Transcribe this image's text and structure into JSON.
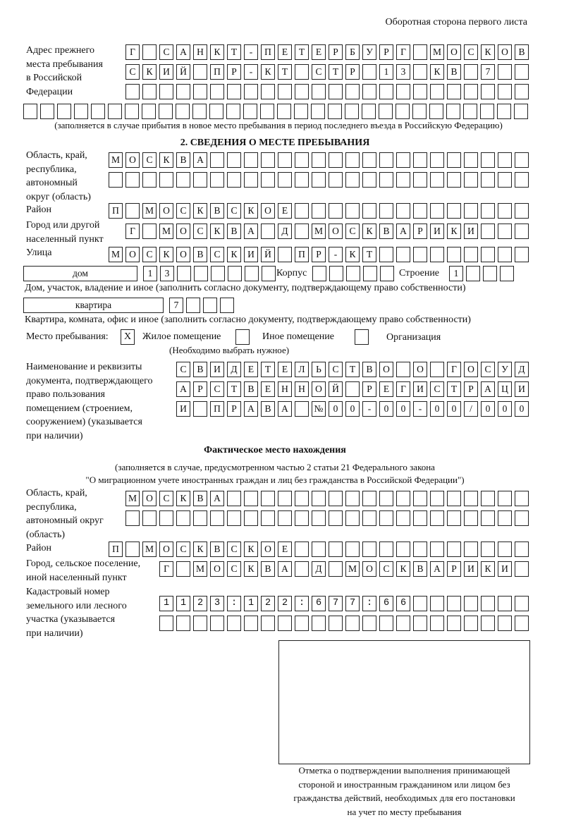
{
  "header": "Оборотная сторона первого листа",
  "previous_address": {
    "label": "Адрес прежнего\nместа пребывания\nв Российской\nФедерации",
    "rows": [
      "Г САНКТ-ПЕТЕРБУРГ МОСКОВ",
      "СКИЙ ПР-КТ СТР 13 КВ 7",
      "",
      ""
    ],
    "note": "(заполняется в случае прибытия в новое место пребывания в период последнего въезда в Российскую Федерацию)"
  },
  "section2": {
    "title": "2. СВЕДЕНИЯ О МЕСТЕ ПРЕБЫВАНИЯ",
    "region_label": "Область, край,\nреспублика,\nавтономный\nокруг (область)",
    "region_rows": [
      "МОСКВА",
      ""
    ],
    "district_label": "Район",
    "district": "П МОСКВСКОЕ",
    "city_label": "Город или другой\nнаселенный пункт",
    "city": "Г МОСКВА Д МОСКВАРИКИ",
    "street_label": "Улица",
    "street": "МОСКОВСКИЙ ПР-КТ",
    "house_type": "дом",
    "house_number": "13",
    "korpus_label": "Корпус",
    "korpus": "",
    "building_label": "Строение",
    "building": "1",
    "house_note": "Дом, участок, владение и иное (заполнить согласно документу, подтверждающему право собственности)",
    "apartment_type": "квартира",
    "apartment_number": "7",
    "apartment_note": "Квартира, комната, офис и иное (заполнить согласно документу, подтверждающему право собственности)",
    "stay_place_label": "Место пребывания:",
    "stay_options": [
      {
        "label": "Жилое помещение",
        "mark": "X",
        "checked": true
      },
      {
        "label": "Иное помещение",
        "mark": "",
        "checked": false
      },
      {
        "label": "Организация",
        "mark": "",
        "checked": false
      }
    ],
    "stay_note": "(Необходимо выбрать нужное)",
    "document_label": "Наименование и реквизиты\nдокумента, подтверждающего\nправо пользования\nпомещением (строением,\nсооружением) (указывается\nпри наличии)",
    "document_rows": [
      "СВИДЕТЕЛЬСТВО О ГОСУД",
      "АРСТВЕННОЙ РЕГИСТРАЦИ",
      "И ПРАВА №00-00-00/000"
    ]
  },
  "actual_location": {
    "title": "Фактическое место нахождения",
    "note_line1": "(заполняется в случае, предусмотренном частью 2 статьи 21 Федерального закона",
    "note_line2": "\"О миграционном учете иностранных граждан и лиц без гражданства в Российской Федерации\")",
    "region_label": "Область, край,\nреспублика,\nавтономный округ\n(область)",
    "region_rows": [
      "МОСКВА",
      ""
    ],
    "district_label": "Район",
    "district": "П МОСКВСКОЕ",
    "city_label": "Город, сельское поселение,\nиной населенный пункт",
    "city": "Г МОСКВА Д МОСКВАРИКИ",
    "cadastral_label": "Кадастровый номер\nземельного или лесного\nучастка (указывается\nпри наличии)",
    "cadastral_rows": [
      "1123:122:677:66",
      ""
    ]
  },
  "confirmation": {
    "caption": "Отметка о подтверждении выполнения принимающей\nстороной и иностранным гражданином или лицом без\nгражданства действий, необходимых для его постановки\nна учет по месту пребывания"
  }
}
